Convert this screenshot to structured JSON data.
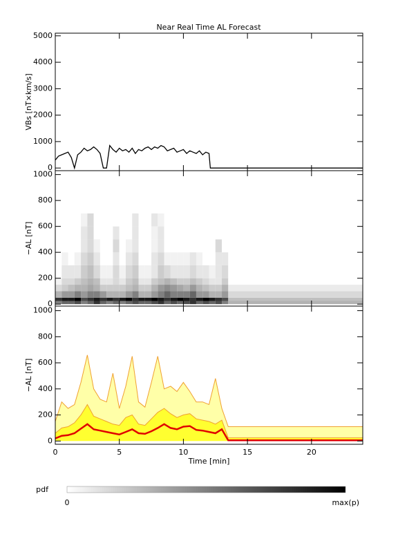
{
  "chart_data": [
    {
      "type": "line",
      "title": "Near Real Time AL Forecast",
      "ylabel": "VBs [nT×km/s]",
      "xlim": [
        0,
        24
      ],
      "xticks": [
        0,
        5,
        10,
        15,
        20
      ],
      "ylim": [
        -100,
        5100
      ],
      "yticks": [
        0,
        1000,
        2000,
        3000,
        4000,
        5000
      ],
      "x": [
        0,
        0.25,
        0.5,
        0.75,
        1,
        1.25,
        1.5,
        1.75,
        2,
        2.25,
        2.5,
        2.75,
        3,
        3.25,
        3.5,
        3.75,
        4,
        4.25,
        4.5,
        4.75,
        5,
        5.25,
        5.5,
        5.75,
        6,
        6.25,
        6.5,
        6.75,
        7,
        7.25,
        7.5,
        7.75,
        8,
        8.25,
        8.5,
        8.75,
        9,
        9.25,
        9.5,
        9.75,
        10,
        10.25,
        10.5,
        10.75,
        11,
        11.25,
        11.5,
        11.75,
        12,
        12.1,
        24
      ],
      "series": [
        {
          "color": "#000000",
          "values": [
            300,
            450,
            500,
            550,
            600,
            400,
            0,
            500,
            600,
            750,
            650,
            700,
            800,
            700,
            550,
            0,
            0,
            850,
            700,
            600,
            750,
            650,
            700,
            600,
            750,
            550,
            700,
            650,
            750,
            800,
            700,
            800,
            750,
            850,
            800,
            650,
            700,
            750,
            600,
            650,
            700,
            550,
            650,
            600,
            550,
            650,
            500,
            600,
            550,
            0,
            0
          ]
        }
      ]
    },
    {
      "type": "heatmap",
      "ylabel": "−AL [nT]",
      "xlim": [
        0,
        24
      ],
      "xticks": [
        0,
        5,
        10,
        15,
        20
      ],
      "ylim": [
        -15,
        1030
      ],
      "yticks": [
        0,
        200,
        400,
        600,
        800,
        1000
      ],
      "x_edges": [
        0,
        0.5,
        1,
        1.5,
        2,
        2.5,
        3,
        3.5,
        4,
        4.5,
        5,
        5.5,
        6,
        6.5,
        7,
        7.5,
        8,
        8.5,
        9,
        9.5,
        10,
        10.5,
        11,
        11.5,
        12,
        12.5,
        13,
        13.5,
        24
      ],
      "y_edges": [
        0,
        25,
        50,
        100,
        150,
        200,
        300,
        400,
        500,
        600,
        700
      ],
      "z": [
        [
          0.5,
          0.6,
          0.6,
          0.7,
          0.5,
          0.6,
          0.8,
          0.6,
          0.5,
          0.6,
          0.5,
          0.6,
          0.7,
          0.6,
          0.6,
          0.7,
          0.8,
          0.6,
          0.7,
          0.6,
          0.7,
          0.8,
          0.6,
          0.7,
          0.6,
          0.7,
          0.5,
          0.3
        ],
        [
          0.8,
          0.9,
          0.9,
          1,
          0.7,
          0.8,
          0.9,
          0.8,
          0.9,
          0.8,
          0.9,
          1,
          0.8,
          0.9,
          0.9,
          1,
          0.9,
          0.8,
          0.9,
          1,
          0.9,
          0.8,
          0.9,
          1,
          0.9,
          0.8,
          0.7,
          0.25
        ],
        [
          0.3,
          0.4,
          0.4,
          0.5,
          0.4,
          0.5,
          0.5,
          0.4,
          0.3,
          0.3,
          0.3,
          0.4,
          0.5,
          0.3,
          0.3,
          0.4,
          0.5,
          0.6,
          0.5,
          0.5,
          0.5,
          0.6,
          0.4,
          0.4,
          0.3,
          0.3,
          0.4,
          0.15
        ],
        [
          0.15,
          0.2,
          0.25,
          0.3,
          0.3,
          0.35,
          0.3,
          0.2,
          0.2,
          0.2,
          0.2,
          0.25,
          0.3,
          0.2,
          0.2,
          0.3,
          0.4,
          0.45,
          0.4,
          0.35,
          0.3,
          0.4,
          0.3,
          0.25,
          0.2,
          0.2,
          0.3,
          0.08
        ],
        [
          0.05,
          0.15,
          0.15,
          0.2,
          0.25,
          0.3,
          0.25,
          0.1,
          0.1,
          0.15,
          0.1,
          0.2,
          0.25,
          0.1,
          0.1,
          0.2,
          0.25,
          0.3,
          0.25,
          0.2,
          0.2,
          0.25,
          0.2,
          0.15,
          0.1,
          0.1,
          0.2,
          0
        ],
        [
          0,
          0.1,
          0.1,
          0.1,
          0.2,
          0.25,
          0.15,
          0.05,
          0.05,
          0.15,
          0.05,
          0.15,
          0.2,
          0.05,
          0.05,
          0.1,
          0.2,
          0.15,
          0.1,
          0.1,
          0.1,
          0.15,
          0.1,
          0.1,
          0.05,
          0.1,
          0.15,
          0
        ],
        [
          0,
          0.05,
          0,
          0.05,
          0.15,
          0.2,
          0.1,
          0,
          0,
          0.1,
          0,
          0.1,
          0.15,
          0,
          0,
          0.1,
          0.15,
          0.05,
          0.05,
          0.05,
          0.05,
          0.1,
          0.05,
          0,
          0,
          0.1,
          0.1,
          0
        ],
        [
          0,
          0,
          0,
          0,
          0.1,
          0.15,
          0.05,
          0,
          0,
          0.15,
          0,
          0.05,
          0.1,
          0,
          0,
          0.05,
          0.1,
          0,
          0,
          0,
          0,
          0,
          0,
          0,
          0,
          0.15,
          0,
          0
        ],
        [
          0,
          0,
          0,
          0,
          0.1,
          0.15,
          0,
          0,
          0,
          0.1,
          0,
          0,
          0.1,
          0,
          0,
          0.05,
          0.1,
          0,
          0,
          0,
          0,
          0,
          0,
          0,
          0,
          0,
          0,
          0
        ],
        [
          0,
          0,
          0,
          0,
          0.05,
          0.15,
          0,
          0,
          0,
          0,
          0,
          0,
          0.1,
          0,
          0,
          0.1,
          0.05,
          0,
          0,
          0,
          0,
          0,
          0,
          0,
          0,
          0,
          0,
          0
        ]
      ]
    },
    {
      "type": "line",
      "ylabel": "−AL [nT]",
      "xlabel": "Time [min]",
      "xlim": [
        0,
        24
      ],
      "xticks": [
        0,
        5,
        10,
        15,
        20
      ],
      "ylim": [
        -25,
        1035
      ],
      "yticks": [
        0,
        200,
        400,
        600,
        800,
        1000
      ],
      "x": [
        0,
        0.5,
        1,
        1.5,
        2,
        2.5,
        3,
        3.5,
        4,
        4.5,
        5,
        5.5,
        6,
        6.5,
        7,
        7.5,
        8,
        8.5,
        9,
        9.5,
        10,
        10.5,
        11,
        11.5,
        12,
        12.5,
        13,
        13.5,
        24
      ],
      "series": [
        {
          "color": "#f0a030",
          "fill": "#ffffa8",
          "values": [
            150,
            300,
            250,
            280,
            450,
            660,
            400,
            320,
            300,
            520,
            250,
            420,
            650,
            300,
            260,
            450,
            650,
            400,
            420,
            380,
            450,
            380,
            300,
            300,
            280,
            480,
            250,
            110,
            110
          ]
        },
        {
          "color": "#f0a030",
          "fill": "#ffff30",
          "values": [
            60,
            100,
            110,
            140,
            200,
            280,
            190,
            170,
            150,
            130,
            120,
            180,
            200,
            130,
            120,
            170,
            220,
            250,
            210,
            180,
            200,
            210,
            170,
            160,
            150,
            130,
            160,
            25,
            25
          ]
        },
        {
          "color": "#e00000",
          "values": [
            20,
            40,
            45,
            60,
            95,
            130,
            90,
            80,
            70,
            60,
            50,
            70,
            90,
            60,
            55,
            75,
            100,
            130,
            100,
            90,
            110,
            115,
            85,
            80,
            70,
            60,
            90,
            5,
            5
          ]
        }
      ]
    }
  ],
  "colorbar": {
    "label": "pdf",
    "min_label": "0",
    "max_label": "max(p)",
    "colors": [
      "#ffffff",
      "#000000"
    ]
  }
}
